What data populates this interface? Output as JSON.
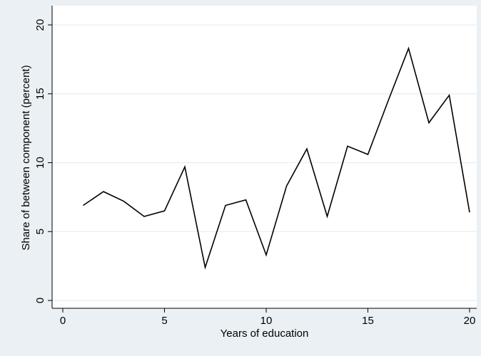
{
  "chart_data": {
    "type": "line",
    "title": "",
    "xlabel": "Years of education",
    "ylabel": "Share of between component (percent)",
    "xlim": [
      0,
      20
    ],
    "ylim": [
      0,
      20
    ],
    "xticks": [
      0,
      5,
      10,
      15,
      20
    ],
    "xtick_labels": [
      "0",
      "5",
      "10",
      "15",
      "20"
    ],
    "yticks": [
      0,
      5,
      10,
      15,
      20
    ],
    "ytick_labels": [
      "0",
      "5",
      "10",
      "15",
      "20"
    ],
    "grid": true,
    "legend": "none",
    "colors": {
      "background": "#eaf0f3",
      "plot_area": "#ffffff",
      "grid": "#e6eef2",
      "line": "#000000"
    },
    "series": [
      {
        "x": [
          1,
          2,
          3,
          4,
          5,
          6,
          7,
          8,
          9,
          10,
          11,
          12,
          13,
          14,
          15,
          16,
          17,
          18,
          19,
          20
        ],
        "values": [
          6.9,
          7.9,
          7.2,
          6.1,
          6.5,
          9.7,
          2.4,
          6.9,
          7.3,
          3.3,
          8.3,
          11.0,
          6.1,
          11.2,
          10.6,
          14.5,
          18.3,
          12.9,
          14.9,
          6.4
        ]
      }
    ]
  }
}
